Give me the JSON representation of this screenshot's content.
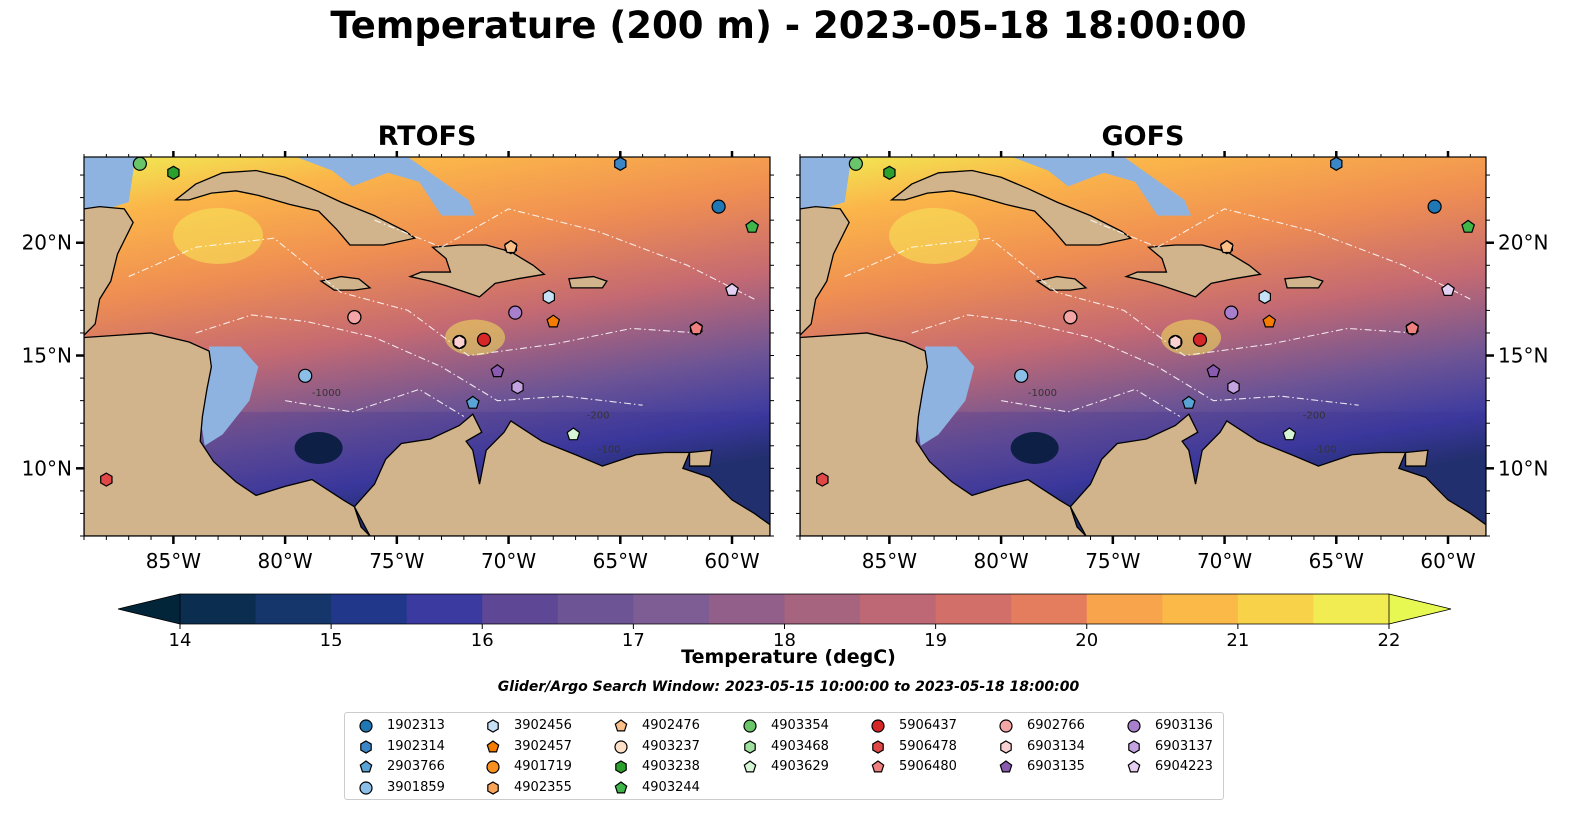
{
  "title": "Temperature (200 m) - 2023-05-18 18:00:00",
  "panels": [
    "RTOFS",
    "GOFS"
  ],
  "chart_data": {
    "type": "heatmap",
    "title": "Temperature (200 m) - 2023-05-18 18:00:00",
    "x_ticks": [
      "85°W",
      "80°W",
      "75°W",
      "70°W",
      "65°W",
      "60°W"
    ],
    "x_tick_values": [
      -85,
      -80,
      -75,
      -70,
      -65,
      -60
    ],
    "y_ticks": [
      "10°N",
      "15°N",
      "20°N"
    ],
    "y_tick_values": [
      10,
      15,
      20
    ],
    "xlim": [
      -89,
      -58.3
    ],
    "ylim": [
      7,
      23.8
    ],
    "colorbar": {
      "label": "Temperature (degC)",
      "min": 14,
      "max": 22,
      "step": 0.5,
      "tick_labels": [
        "14",
        "15",
        "16",
        "17",
        "18",
        "19",
        "20",
        "21",
        "22"
      ],
      "extend": "both",
      "colors": [
        "#03253a",
        "#0b2d4f",
        "#15366b",
        "#21378a",
        "#3a3aa0",
        "#4e3f9a",
        "#5e4896",
        "#6d5495",
        "#7e5d94",
        "#915f8a",
        "#a6647e",
        "#bd6874",
        "#d36f69",
        "#e47c5e",
        "#ef8e52",
        "#f7a44c",
        "#fbba48",
        "#f8d34a",
        "#f0ec52",
        "#e8f852"
      ]
    },
    "contour_labels": [
      "-1000",
      "-200",
      "-100"
    ]
  },
  "search_window": "Glider/Argo Search Window: 2023-05-15 10:00:00 to 2023-05-18 18:00:00",
  "floats": [
    {
      "id": "1902313",
      "marker": "circle",
      "color": "#1f77b4",
      "lon": -60.6,
      "lat": 21.6
    },
    {
      "id": "1902314",
      "marker": "hexagon",
      "color": "#3b86c7",
      "lon": -65.0,
      "lat": 23.5
    },
    {
      "id": "2903766",
      "marker": "pentagon",
      "color": "#5aa3d6",
      "lon": -71.6,
      "lat": 12.9
    },
    {
      "id": "3901859",
      "marker": "circle",
      "color": "#8bbfe8",
      "lon": -79.1,
      "lat": 14.1
    },
    {
      "id": "3902456",
      "marker": "hexagon",
      "color": "#c4e1f5",
      "lon": -68.2,
      "lat": 17.6
    },
    {
      "id": "3902457",
      "marker": "pentagon",
      "color": "#f57c00",
      "lon": -68.0,
      "lat": 16.5
    },
    {
      "id": "4901719",
      "marker": "circle",
      "color": "#f7901e",
      "lon": -76.9,
      "lat": 16.7
    },
    {
      "id": "4902355",
      "marker": "hexagon",
      "color": "#f8a55a",
      "lon": -69.9,
      "lat": 19.8
    },
    {
      "id": "4902476",
      "marker": "pentagon",
      "color": "#fbc08a",
      "lon": -69.9,
      "lat": 19.8
    },
    {
      "id": "4903237",
      "marker": "circle",
      "color": "#fde0c5",
      "lon": -72.2,
      "lat": 15.6
    },
    {
      "id": "4903238",
      "marker": "hexagon",
      "color": "#2ca02c",
      "lon": -85.0,
      "lat": 23.1
    },
    {
      "id": "4903244",
      "marker": "pentagon",
      "color": "#3fb54a",
      "lon": -59.1,
      "lat": 20.7
    },
    {
      "id": "4903354",
      "marker": "circle",
      "color": "#6ac46a",
      "lon": -86.5,
      "lat": 23.5
    },
    {
      "id": "4903468",
      "marker": "hexagon",
      "color": "#9fe09f",
      "lon": -61.6,
      "lat": 16.2
    },
    {
      "id": "4903629",
      "marker": "pentagon",
      "color": "#d5f5d5",
      "lon": -67.1,
      "lat": 11.5
    },
    {
      "id": "5906437",
      "marker": "circle",
      "color": "#d62728",
      "lon": -71.1,
      "lat": 15.7
    },
    {
      "id": "5906478",
      "marker": "hexagon",
      "color": "#e04848",
      "lon": -88.0,
      "lat": 9.5
    },
    {
      "id": "5906480",
      "marker": "pentagon",
      "color": "#f08080",
      "lon": -61.6,
      "lat": 16.2
    },
    {
      "id": "6902766",
      "marker": "circle",
      "color": "#f4a6a6",
      "lon": -76.9,
      "lat": 16.7
    },
    {
      "id": "6903134",
      "marker": "hexagon",
      "color": "#fbd0d0",
      "lon": -72.2,
      "lat": 15.6
    },
    {
      "id": "6903135",
      "marker": "pentagon",
      "color": "#8a5ab0",
      "lon": -70.5,
      "lat": 14.3
    },
    {
      "id": "6903136",
      "marker": "circle",
      "color": "#a77fcc",
      "lon": -69.7,
      "lat": 16.9
    },
    {
      "id": "6903137",
      "marker": "hexagon",
      "color": "#c4a3e0",
      "lon": -69.6,
      "lat": 13.6
    },
    {
      "id": "6904223",
      "marker": "pentagon",
      "color": "#e4d0f3",
      "lon": -60.0,
      "lat": 17.9
    }
  ],
  "colors": {
    "land": "#d2b48c",
    "shelf": "#8fb3e0",
    "deep": "#06243a"
  }
}
